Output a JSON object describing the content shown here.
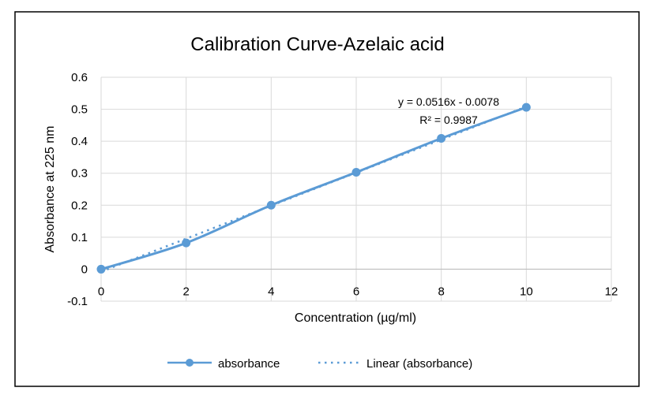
{
  "chart_data": {
    "type": "scatter",
    "title": "Calibration Curve-Azelaic acid",
    "xlabel": "Concentration (µg/ml)",
    "ylabel": "Absorbance at 225 nm",
    "xlim": [
      0,
      12
    ],
    "ylim": [
      -0.1,
      0.6
    ],
    "x_ticks": [
      "0",
      "2",
      "4",
      "6",
      "8",
      "10",
      "12"
    ],
    "y_ticks": [
      "-0.1",
      "0",
      "0.1",
      "0.2",
      "0.3",
      "0.4",
      "0.5",
      "0.6"
    ],
    "grid": true,
    "legend_position": "bottom",
    "series": [
      {
        "name": "absorbance",
        "color": "#5b9bd5",
        "style": "smooth-line-with-markers",
        "x": [
          0,
          2,
          4,
          6,
          8,
          10
        ],
        "y": [
          0,
          0.082,
          0.2,
          0.303,
          0.409,
          0.506
        ]
      },
      {
        "name": "Linear (absorbance)",
        "color": "#5b9bd5",
        "style": "dotted-trendline",
        "slope": 0.0516,
        "intercept": -0.0078
      }
    ],
    "annotations": {
      "equation": "y = 0.0516x - 0.0078",
      "r_squared": "R² = 0.9987"
    }
  }
}
